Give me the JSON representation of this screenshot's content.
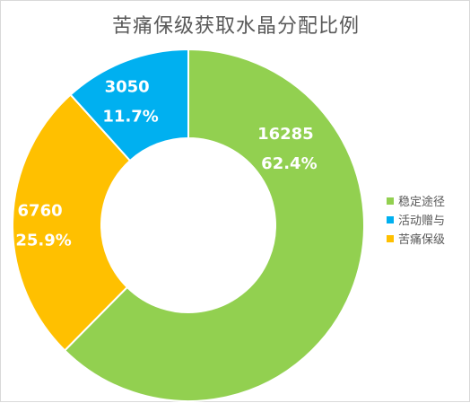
{
  "chart_data": {
    "type": "pie",
    "subtype": "donut",
    "title": "苦痛保级获取水晶分配比例",
    "slices": [
      {
        "name": "稳定途径",
        "value": 16285,
        "percent_label": "62.4%",
        "color": "#92D050"
      },
      {
        "name": "苦痛保级",
        "value": 6760,
        "percent_label": "25.9%",
        "color": "#FFC000"
      },
      {
        "name": "活动赠与",
        "value": 3050,
        "percent_label": "11.7%",
        "color": "#00B0F0"
      }
    ],
    "legend_order": [
      "稳定途径",
      "活动赠与",
      "苦痛保级"
    ],
    "legend_placement": "right",
    "slice_border_color": "#FFFFFF"
  }
}
